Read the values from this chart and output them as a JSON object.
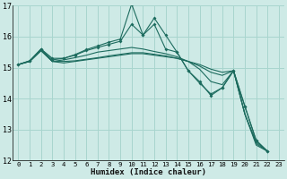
{
  "xlabel": "Humidex (Indice chaleur)",
  "bg_color": "#ceeae6",
  "grid_color": "#a8d5ce",
  "line_color": "#1c6b5e",
  "xlim": [
    -0.5,
    23.5
  ],
  "ylim": [
    12,
    17
  ],
  "yticks": [
    12,
    13,
    14,
    15,
    16,
    17
  ],
  "xticks": [
    0,
    1,
    2,
    3,
    4,
    5,
    6,
    7,
    8,
    9,
    10,
    11,
    12,
    13,
    14,
    15,
    16,
    17,
    18,
    19,
    20,
    21,
    22,
    23
  ],
  "series": [
    {
      "x": [
        0,
        1,
        2,
        3,
        4,
        5,
        6,
        7,
        8,
        9,
        10,
        11,
        12,
        13,
        14,
        15,
        16,
        17,
        18,
        19,
        20,
        21,
        22
      ],
      "y": [
        15.1,
        15.2,
        15.55,
        15.2,
        15.15,
        15.2,
        15.25,
        15.3,
        15.35,
        15.4,
        15.45,
        15.45,
        15.4,
        15.35,
        15.3,
        15.2,
        15.1,
        14.95,
        14.85,
        14.9,
        13.5,
        12.6,
        12.3
      ],
      "marker": false
    },
    {
      "x": [
        0,
        1,
        2,
        3,
        4,
        5,
        6,
        7,
        8,
        9,
        10,
        11,
        12,
        13,
        14,
        15,
        16,
        17,
        18,
        19,
        20,
        21,
        22
      ],
      "y": [
        15.1,
        15.2,
        15.55,
        15.2,
        15.2,
        15.22,
        15.27,
        15.32,
        15.38,
        15.43,
        15.48,
        15.48,
        15.43,
        15.38,
        15.3,
        15.2,
        15.05,
        14.85,
        14.75,
        14.9,
        13.5,
        12.55,
        12.3
      ],
      "marker": false
    },
    {
      "x": [
        0,
        1,
        2,
        3,
        4,
        5,
        6,
        7,
        8,
        9,
        10,
        11,
        12,
        13,
        14,
        15,
        16,
        17,
        18,
        19,
        20,
        21,
        22
      ],
      "y": [
        15.1,
        15.2,
        15.55,
        15.2,
        15.25,
        15.32,
        15.4,
        15.5,
        15.55,
        15.6,
        15.65,
        15.6,
        15.52,
        15.45,
        15.35,
        15.2,
        14.95,
        14.55,
        14.45,
        14.9,
        13.5,
        12.5,
        12.3
      ],
      "marker": false
    },
    {
      "x": [
        0,
        1,
        2,
        3,
        4,
        5,
        6,
        7,
        8,
        9,
        10,
        11,
        12,
        13,
        14,
        15,
        16,
        17,
        18,
        19,
        20,
        21,
        22
      ],
      "y": [
        15.1,
        15.22,
        15.6,
        15.25,
        15.3,
        15.4,
        15.55,
        15.65,
        15.75,
        15.85,
        16.4,
        16.05,
        16.6,
        16.05,
        15.5,
        14.9,
        14.55,
        14.1,
        14.35,
        14.9,
        13.75,
        12.65,
        12.3
      ],
      "marker": true
    },
    {
      "x": [
        0,
        1,
        2,
        3,
        4,
        5,
        6,
        7,
        8,
        9,
        10,
        11,
        12,
        13,
        14,
        15,
        16,
        17,
        18,
        19,
        20,
        21,
        22
      ],
      "y": [
        15.1,
        15.22,
        15.6,
        15.3,
        15.3,
        15.42,
        15.58,
        15.7,
        15.82,
        15.92,
        17.05,
        16.05,
        16.4,
        15.6,
        15.5,
        14.9,
        14.5,
        14.15,
        14.35,
        14.9,
        13.75,
        12.65,
        12.3
      ],
      "marker": true
    }
  ]
}
